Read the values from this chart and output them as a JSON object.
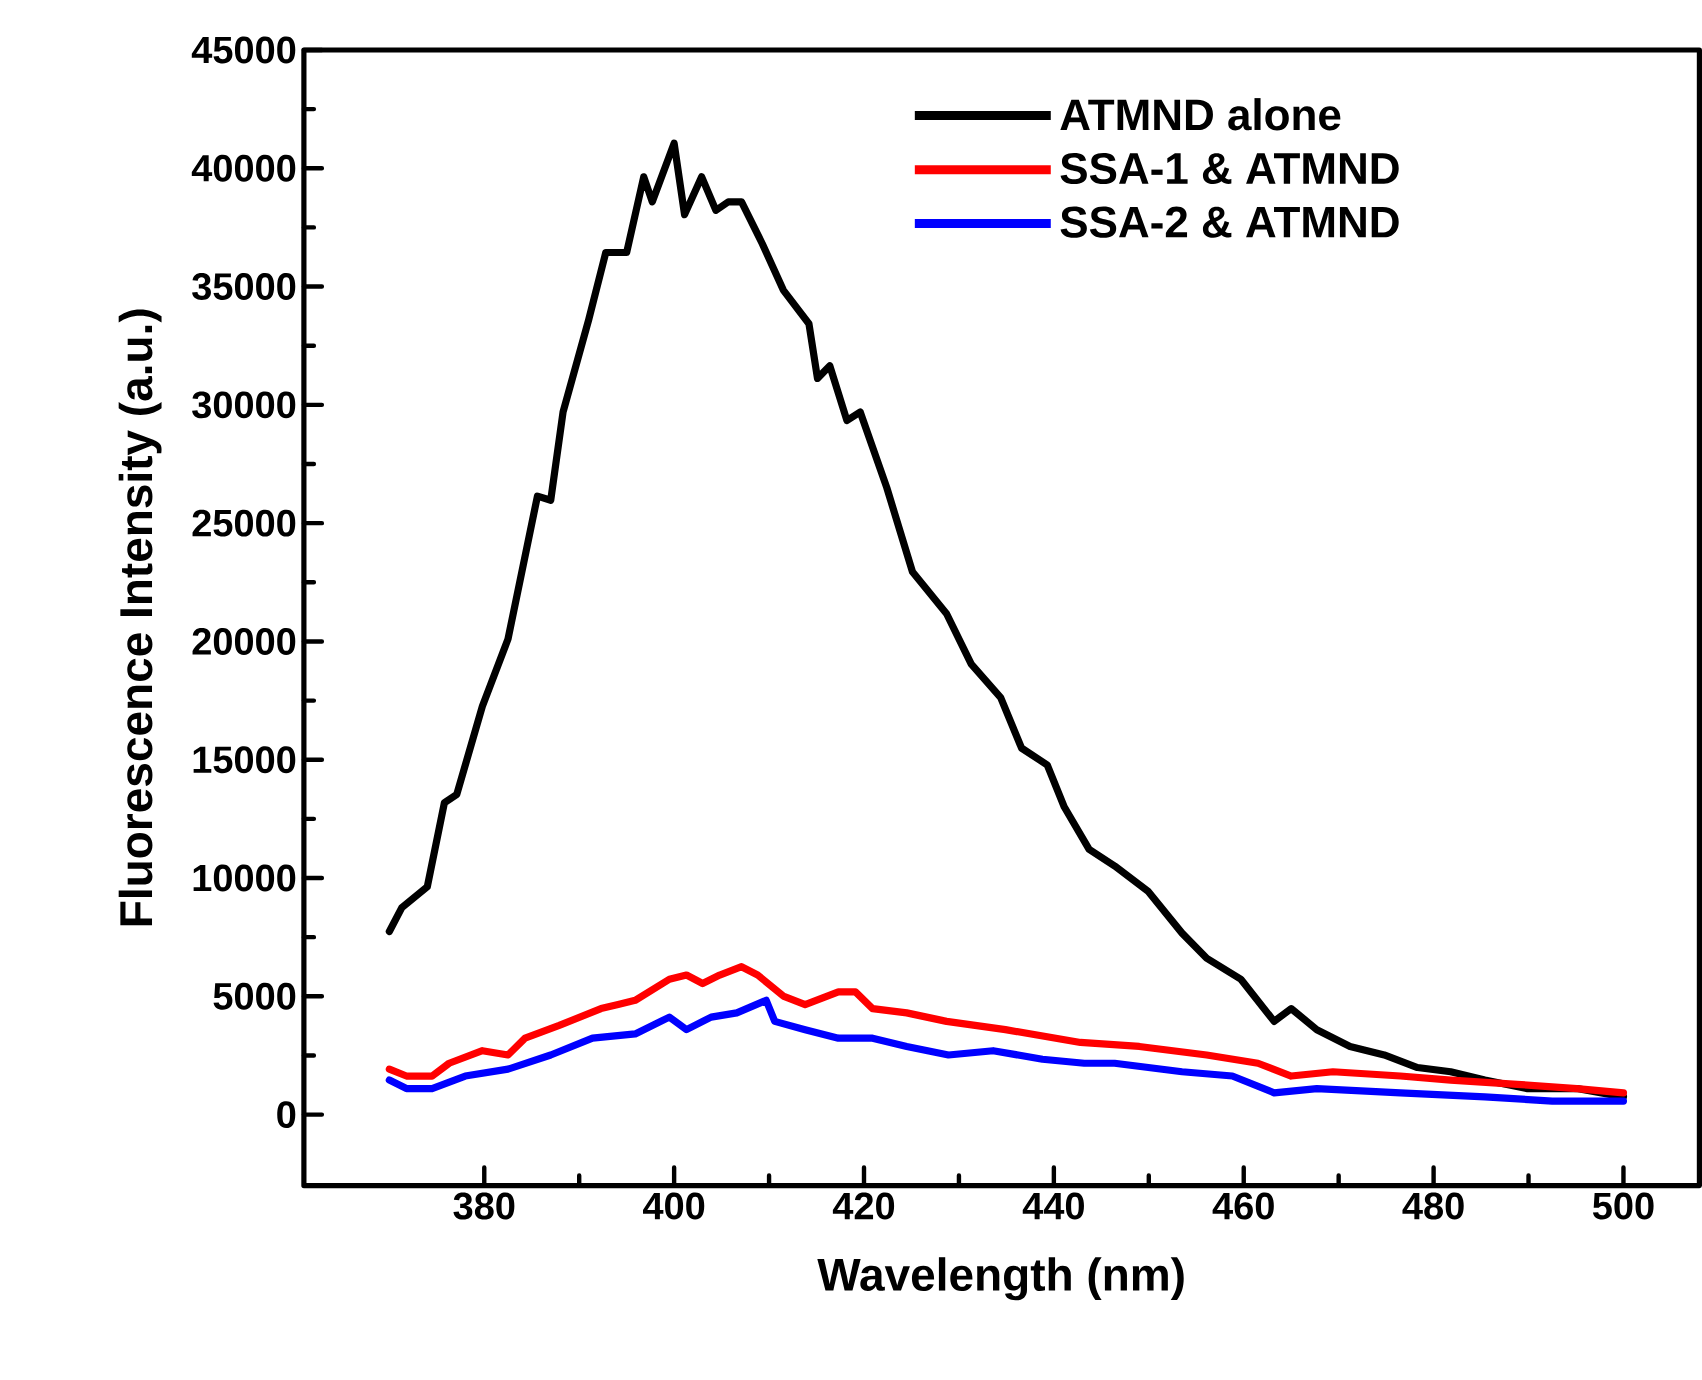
{
  "chart_data": {
    "type": "line",
    "xlabel": "Wavelength (nm)",
    "ylabel": "Fluorescence Intensity (a.u.)",
    "xlim": [
      361,
      508
    ],
    "ylim": [
      -3000,
      45000
    ],
    "xticks": [
      380,
      400,
      420,
      440,
      460,
      480,
      500
    ],
    "yticks": [
      0,
      5000,
      10000,
      15000,
      20000,
      25000,
      30000,
      35000,
      40000,
      45000
    ],
    "legend": "top right",
    "marker": "none",
    "line_style": "solid",
    "series": [
      {
        "name": "ATMND alone",
        "color": "#000000",
        "x": [
          370,
          371.3,
          374,
          375.8,
          377.1,
          379.8,
          382.5,
          385.6,
          387,
          388.3,
          391,
          392.8,
          395,
          396.8,
          397.7,
          400,
          401.1,
          402.9,
          404.4,
          405.7,
          407.1,
          409.3,
          411.5,
          414.2,
          415.1,
          416.4,
          418.2,
          419.6,
          422.4,
          425.1,
          428.7,
          431.3,
          434.4,
          436.6,
          439.3,
          441.1,
          443.7,
          446.4,
          449.9,
          453.5,
          456.1,
          459.7,
          463.2,
          465,
          467.7,
          471.2,
          474.8,
          478.3,
          481.8,
          485.4,
          489.8,
          495.1,
          500
        ],
        "values": [
          7740,
          8740,
          9630,
          13180,
          13530,
          17260,
          20100,
          26140,
          25970,
          29700,
          33600,
          36440,
          36440,
          39640,
          38580,
          41060,
          38040,
          39640,
          38220,
          38580,
          38580,
          36800,
          34850,
          33430,
          31120,
          31650,
          29340,
          29700,
          26500,
          22950,
          21170,
          19040,
          17620,
          15490,
          14780,
          13000,
          11220,
          10510,
          9450,
          7670,
          6610,
          5720,
          3940,
          4480,
          3590,
          2880,
          2520,
          1990,
          1810,
          1460,
          1100,
          1100,
          750
        ]
      },
      {
        "name": "SSA-1 & ATMND",
        "color": "#ff0000",
        "x": [
          370,
          371.8,
          374.5,
          376.3,
          379.8,
          382.5,
          384.3,
          387.9,
          392.3,
          394.1,
          395.9,
          399.5,
          401.3,
          403,
          404.8,
          407.1,
          408.8,
          411.5,
          413.8,
          417.3,
          419.1,
          420.9,
          424.5,
          428.7,
          434.9,
          442.8,
          449,
          456.1,
          461.5,
          465,
          469.4,
          476.5,
          481.8,
          488.8,
          495.1,
          500
        ],
        "values": [
          1920,
          1630,
          1630,
          2170,
          2700,
          2520,
          3230,
          3770,
          4480,
          4650,
          4830,
          5720,
          5900,
          5540,
          5900,
          6250,
          5900,
          5010,
          4650,
          5190,
          5190,
          4480,
          4300,
          3940,
          3590,
          3050,
          2880,
          2520,
          2170,
          1630,
          1810,
          1630,
          1460,
          1280,
          1100,
          920
        ]
      },
      {
        "name": "SSA-2 & ATMND",
        "color": "#0000ff",
        "x": [
          370,
          371.8,
          374.5,
          378,
          382.5,
          387,
          391.4,
          395.9,
          399.5,
          401.3,
          403.9,
          406.6,
          409.7,
          410.6,
          413.8,
          417.3,
          420.9,
          424.5,
          428.9,
          433.6,
          438.8,
          443.2,
          446.4,
          453.5,
          458.8,
          463.2,
          467.7,
          476.5,
          485.4,
          492.5,
          500
        ],
        "values": [
          1460,
          1100,
          1100,
          1630,
          1920,
          2520,
          3230,
          3410,
          4120,
          3590,
          4120,
          4300,
          4830,
          3940,
          3590,
          3230,
          3230,
          2880,
          2520,
          2700,
          2340,
          2170,
          2170,
          1810,
          1630,
          920,
          1100,
          920,
          750,
          570,
          570
        ]
      }
    ]
  }
}
